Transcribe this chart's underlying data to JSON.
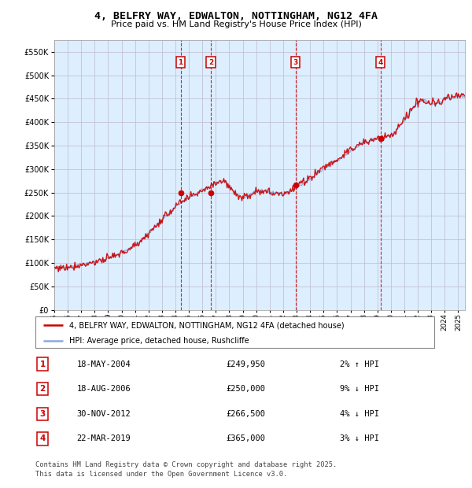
{
  "title": "4, BELFRY WAY, EDWALTON, NOTTINGHAM, NG12 4FA",
  "subtitle": "Price paid vs. HM Land Registry's House Price Index (HPI)",
  "red_label": "4, BELFRY WAY, EDWALTON, NOTTINGHAM, NG12 4FA (detached house)",
  "blue_label": "HPI: Average price, detached house, Rushcliffe",
  "footer": "Contains HM Land Registry data © Crown copyright and database right 2025.\nThis data is licensed under the Open Government Licence v3.0.",
  "sales": [
    {
      "num": 1,
      "date": "18-MAY-2004",
      "price": 249950,
      "pct": "2%",
      "dir": "↑"
    },
    {
      "num": 2,
      "date": "18-AUG-2006",
      "price": 250000,
      "pct": "9%",
      "dir": "↓"
    },
    {
      "num": 3,
      "date": "30-NOV-2012",
      "price": 266500,
      "pct": "4%",
      "dir": "↓"
    },
    {
      "num": 4,
      "date": "22-MAR-2019",
      "price": 365000,
      "pct": "3%",
      "dir": "↓"
    }
  ],
  "sale_years": [
    2004.38,
    2006.63,
    2012.92,
    2019.22
  ],
  "ylim": [
    0,
    575000
  ],
  "yticks": [
    0,
    50000,
    100000,
    150000,
    200000,
    250000,
    300000,
    350000,
    400000,
    450000,
    500000,
    550000
  ],
  "xlim_start": 1995,
  "xlim_end": 2025.5,
  "bg_color": "#DDEEFF",
  "red_color": "#CC0000",
  "blue_color": "#88AADD",
  "vline_color": "#CC0000",
  "box_color": "#CC0000",
  "grid_color": "#BBBBCC",
  "hpi_anchors": [
    [
      1995.0,
      88000
    ],
    [
      1996.0,
      92000
    ],
    [
      1997.0,
      97000
    ],
    [
      1998.0,
      103000
    ],
    [
      1999.0,
      110000
    ],
    [
      2000.0,
      122000
    ],
    [
      2001.0,
      137000
    ],
    [
      2002.0,
      162000
    ],
    [
      2003.0,
      192000
    ],
    [
      2004.0,
      220000
    ],
    [
      2005.0,
      238000
    ],
    [
      2006.0,
      255000
    ],
    [
      2007.0,
      272000
    ],
    [
      2007.6,
      274000
    ],
    [
      2008.0,
      262000
    ],
    [
      2008.5,
      248000
    ],
    [
      2009.0,
      238000
    ],
    [
      2009.5,
      245000
    ],
    [
      2010.0,
      255000
    ],
    [
      2011.0,
      252000
    ],
    [
      2012.0,
      247000
    ],
    [
      2012.5,
      250000
    ],
    [
      2013.0,
      260000
    ],
    [
      2014.0,
      278000
    ],
    [
      2015.0,
      300000
    ],
    [
      2016.0,
      318000
    ],
    [
      2017.0,
      338000
    ],
    [
      2018.0,
      356000
    ],
    [
      2019.0,
      365000
    ],
    [
      2019.5,
      370000
    ],
    [
      2020.0,
      372000
    ],
    [
      2020.5,
      385000
    ],
    [
      2021.0,
      402000
    ],
    [
      2021.5,
      425000
    ],
    [
      2022.0,
      442000
    ],
    [
      2022.5,
      448000
    ],
    [
      2023.0,
      438000
    ],
    [
      2023.5,
      440000
    ],
    [
      2024.0,
      448000
    ],
    [
      2024.5,
      452000
    ],
    [
      2025.0,
      455000
    ]
  ]
}
